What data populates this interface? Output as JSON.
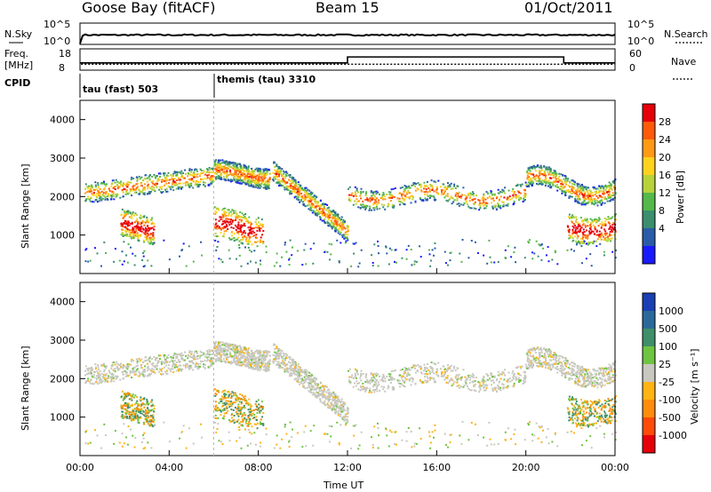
{
  "header": {
    "station": "Goose Bay (fitACF)",
    "beam": "Beam 15",
    "date": "01/Oct/2011"
  },
  "noise_panel": {
    "left_label": "N.Sky",
    "left_ticks": [
      "10^5",
      "10^0"
    ],
    "right_label": "N.Search",
    "right_ticks": [
      "10^5",
      "10^0"
    ]
  },
  "freq_panel": {
    "left_label_1": "Freq.",
    "left_label_2": "[MHz]",
    "left_ticks": [
      "18",
      "8"
    ],
    "right_label": "Nave",
    "right_ticks": [
      "60",
      "0"
    ]
  },
  "cpid": {
    "label": "CPID",
    "segments": [
      {
        "name": "tau (fast) 503",
        "start": 0
      },
      {
        "name": "themis (tau) 3310",
        "start": 6
      }
    ]
  },
  "x_axis": {
    "label": "Time UT",
    "ticks": [
      "00:00",
      "04:00",
      "08:00",
      "12:00",
      "16:00",
      "20:00",
      "00:00"
    ]
  },
  "power_panel": {
    "ylabel": "Slant Range [km]",
    "yticks": [
      "1000",
      "2000",
      "3000",
      "4000"
    ],
    "colorbar_label": "Power [dB]",
    "colorbar_ticks": [
      "4",
      "8",
      "12",
      "16",
      "20",
      "24",
      "28"
    ],
    "colors": [
      "#1a1aff",
      "#2a5caa",
      "#3b8e6e",
      "#55b84a",
      "#b8d23a",
      "#ffd21e",
      "#ff9a14",
      "#ff5a0a",
      "#e6000a"
    ]
  },
  "velocity_panel": {
    "ylabel": "Slant Range [km]",
    "yticks": [
      "1000",
      "2000",
      "3000",
      "4000"
    ],
    "colorbar_label": "Velocity [m s⁻¹]",
    "colorbar_ticks": [
      "1000",
      "500",
      "100",
      "25",
      "-25",
      "-100",
      "-500",
      "-1000"
    ],
    "colors": [
      "#1a3fb4",
      "#2a6a9a",
      "#3f8f6a",
      "#6fc441",
      "#c8c8c0",
      "#ffb414",
      "#ff8c0a",
      "#ff4a0a",
      "#e6000a"
    ]
  },
  "chart_data": {
    "type": "heatmap",
    "x_range_hours": [
      0,
      24
    ],
    "y_range_km": [
      0,
      4500
    ],
    "freq_mhz": [
      {
        "start": 0,
        "end": 12,
        "value": 10.6
      },
      {
        "start": 12,
        "end": 21.7,
        "value": 14.8
      },
      {
        "start": 21.7,
        "end": 24,
        "value": 10.6
      }
    ],
    "nave": {
      "approx": 13
    },
    "noise_log10": {
      "approx": 2.4
    },
    "echo_bands": [
      {
        "t0": 0.2,
        "t1": 6.0,
        "r0": 1900,
        "r1": 2700,
        "trend": "rising"
      },
      {
        "t0": 6.0,
        "t1": 8.5,
        "r0": 2300,
        "r1": 2900,
        "trend": "flat"
      },
      {
        "t0": 8.6,
        "t1": 12.0,
        "r0": 1100,
        "r1": 2700,
        "trend": "falling"
      },
      {
        "t0": 12.0,
        "t1": 20.0,
        "r0": 1700,
        "r1": 2400,
        "trend": "flat"
      },
      {
        "t0": 20.0,
        "t1": 24.0,
        "r0": 1600,
        "r1": 3000,
        "trend": "mixed"
      },
      {
        "t0": 1.8,
        "t1": 3.3,
        "r0": 900,
        "r1": 1600,
        "trend": "patch"
      },
      {
        "t0": 6.0,
        "t1": 8.2,
        "r0": 800,
        "r1": 1600,
        "trend": "patch"
      },
      {
        "t0": 21.8,
        "t1": 24.0,
        "r0": 900,
        "r1": 1600,
        "trend": "patch"
      }
    ]
  }
}
